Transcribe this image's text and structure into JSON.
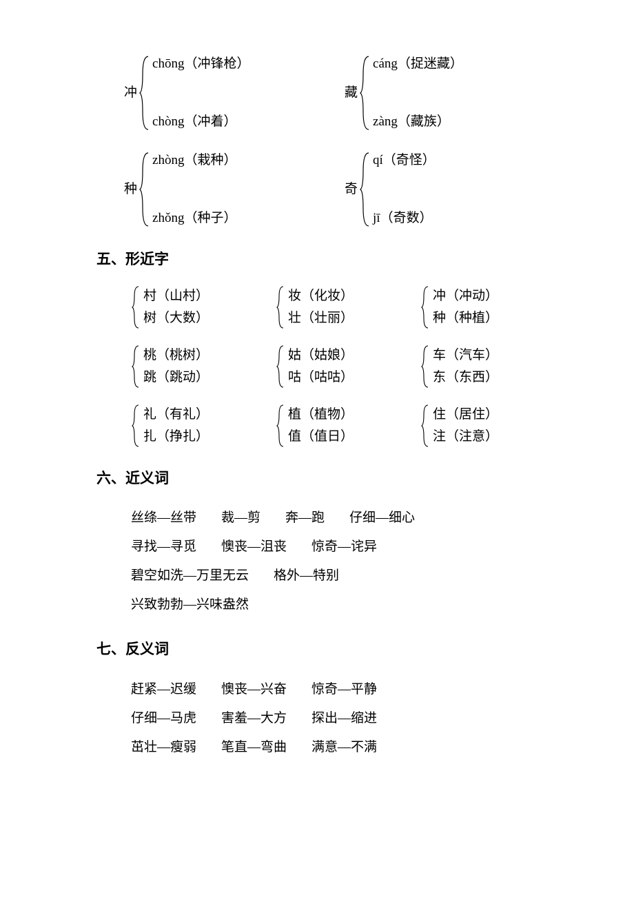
{
  "polyphonic": {
    "rows": [
      {
        "left": {
          "char": "冲",
          "top": "chōng（冲锋枪）",
          "bottom": "chòng（冲着）"
        },
        "right": {
          "char": "藏",
          "top": "cáng（捉迷藏）",
          "bottom": "zàng（藏族）"
        }
      },
      {
        "left": {
          "char": "种",
          "top": "zhòng（栽种）",
          "bottom": "zhǒng（种子）"
        },
        "right": {
          "char": "奇",
          "top": "qí（奇怪）",
          "bottom": "jī（奇数）"
        }
      }
    ]
  },
  "section5": {
    "title": "五、形近字",
    "rows": [
      [
        {
          "top": "村（山村）",
          "bottom": "树（大数）"
        },
        {
          "top": "妆（化妆）",
          "bottom": "壮（壮丽）"
        },
        {
          "top": "冲（冲动）",
          "bottom": "种（种植）"
        }
      ],
      [
        {
          "top": "桃（桃树）",
          "bottom": "跳（跳动）"
        },
        {
          "top": "姑（姑娘）",
          "bottom": "咕（咕咕）"
        },
        {
          "top": "车（汽车）",
          "bottom": "东（东西）"
        }
      ],
      [
        {
          "top": "礼（有礼）",
          "bottom": "扎（挣扎）"
        },
        {
          "top": "植（植物）",
          "bottom": "值（值日）"
        },
        {
          "top": "住（居住）",
          "bottom": "注（注意）"
        }
      ]
    ]
  },
  "section6": {
    "title": "六、近义词",
    "lines": [
      [
        "丝绦—丝带",
        "裁—剪",
        "奔—跑",
        "仔细—细心"
      ],
      [
        "寻找—寻觅",
        "懊丧—沮丧",
        "惊奇—诧异"
      ],
      [
        "碧空如洗—万里无云",
        "格外—特别"
      ],
      [
        "兴致勃勃—兴味盎然"
      ]
    ]
  },
  "section7": {
    "title": "七、反义词",
    "lines": [
      [
        "赶紧—迟缓",
        "懊丧—兴奋",
        "惊奇—平静"
      ],
      [
        "仔细—马虎",
        "害羞—大方",
        "探出—缩进"
      ],
      [
        "茁壮—瘦弱",
        "笔直—弯曲",
        "满意—不满"
      ]
    ]
  },
  "style": {
    "text_color": "#000000",
    "background_color": "#ffffff",
    "body_fontsize": 19,
    "heading_fontsize": 21,
    "font_family": "SimSun"
  }
}
